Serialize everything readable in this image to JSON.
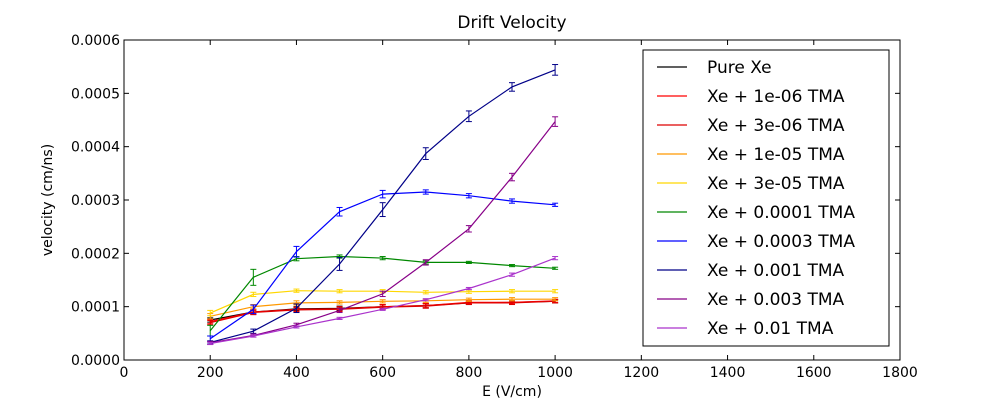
{
  "chart_data": {
    "type": "line",
    "title": "Drift Velocity",
    "xlabel": "E (V/cm)",
    "ylabel": "velocity (cm/ns)",
    "xlim": [
      0,
      1800
    ],
    "ylim": [
      0,
      0.0006
    ],
    "xticks": [
      0,
      200,
      400,
      600,
      800,
      1000,
      1200,
      1400,
      1600,
      1800
    ],
    "xtick_labels": [
      "0",
      "200",
      "400",
      "600",
      "800",
      "1000",
      "1200",
      "1400",
      "1600",
      "1800"
    ],
    "yticks": [
      0,
      0.0001,
      0.0002,
      0.0003,
      0.0004,
      0.0005,
      0.0006
    ],
    "ytick_labels": [
      "0.0000",
      "0.0001",
      "0.0002",
      "0.0003",
      "0.0004",
      "0.0005",
      "0.0006"
    ],
    "grid": false,
    "legend_position": "top-right",
    "x": [
      200,
      300,
      400,
      500,
      600,
      700,
      800,
      900,
      1000
    ],
    "series": [
      {
        "name": "Pure Xe",
        "color": "#000000",
        "values": [
          7.5e-05,
          9e-05,
          9.6e-05,
          9.7e-05,
          0.0001,
          0.000102,
          0.000107,
          0.000108,
          0.00011
        ],
        "errors": [
          4e-06,
          4e-06,
          4e-06,
          4e-06,
          4e-06,
          4e-06,
          3e-06,
          3e-06,
          3e-06
        ]
      },
      {
        "name": "Xe + 1e-06 TMA",
        "color": "#ff0000",
        "values": [
          7.2e-05,
          9e-05,
          9.5e-05,
          9.6e-05,
          0.0001,
          0.000102,
          0.000108,
          0.000108,
          0.000111
        ],
        "errors": [
          4e-06,
          4e-06,
          4e-06,
          4e-06,
          4e-06,
          4e-06,
          3e-06,
          3e-06,
          3e-06
        ]
      },
      {
        "name": "Xe + 3e-06 TMA",
        "color": "#dd0000",
        "values": [
          7e-05,
          8.9e-05,
          9.4e-05,
          9.5e-05,
          9.9e-05,
          0.000101,
          0.000107,
          0.000107,
          0.00011
        ],
        "errors": [
          4e-06,
          4e-06,
          4e-06,
          4e-06,
          4e-06,
          4e-06,
          3e-06,
          3e-06,
          3e-06
        ]
      },
      {
        "name": "Xe + 1e-05 TMA",
        "color": "#ff9900",
        "values": [
          8.2e-05,
          0.0001,
          0.000107,
          0.000108,
          0.00011,
          0.000111,
          0.000113,
          0.000114,
          0.000114
        ],
        "errors": [
          5e-06,
          4e-06,
          4e-06,
          3e-06,
          3e-06,
          3e-06,
          3e-06,
          3e-06,
          3e-06
        ]
      },
      {
        "name": "Xe + 3e-05 TMA",
        "color": "#ffd700",
        "values": [
          8.8e-05,
          0.000123,
          0.00013,
          0.000129,
          0.000129,
          0.000127,
          0.000128,
          0.000129,
          0.000129
        ],
        "errors": [
          5e-06,
          4e-06,
          3e-06,
          3e-06,
          3e-06,
          3e-06,
          3e-06,
          3e-06,
          3e-06
        ]
      },
      {
        "name": "Xe + 0.0001 TMA",
        "color": "#008800",
        "values": [
          5.5e-05,
          0.000155,
          0.00019,
          0.000194,
          0.000191,
          0.000183,
          0.000183,
          0.000177,
          0.000172
        ],
        "errors": [
          1e-05,
          1.5e-05,
          4e-06,
          3e-06,
          3e-06,
          3e-06,
          2e-06,
          2e-06,
          2e-06
        ]
      },
      {
        "name": "Xe + 0.0003 TMA",
        "color": "#0000ff",
        "values": [
          4e-05,
          9.5e-05,
          0.000203,
          0.000278,
          0.000311,
          0.000315,
          0.000308,
          0.000298,
          0.000291
        ],
        "errors": [
          5e-06,
          8e-06,
          1e-05,
          8e-06,
          7e-06,
          4e-06,
          4e-06,
          4e-06,
          3e-06
        ]
      },
      {
        "name": "Xe + 0.001 TMA",
        "color": "#000088",
        "values": [
          3.3e-05,
          5.4e-05,
          9.7e-05,
          0.00018,
          0.000282,
          0.000387,
          0.000457,
          0.000512,
          0.000544
        ],
        "errors": [
          3e-06,
          4e-06,
          8e-06,
          1.2e-05,
          1.3e-05,
          1.1e-05,
          1e-05,
          8e-06,
          1e-05
        ]
      },
      {
        "name": "Xe + 0.003 TMA",
        "color": "#880088",
        "values": [
          3.2e-05,
          4.6e-05,
          6.6e-05,
          9.3e-05,
          0.000124,
          0.000183,
          0.000246,
          0.000343,
          0.000447
        ],
        "errors": [
          3e-06,
          3e-06,
          3e-06,
          4e-06,
          5e-06,
          5e-06,
          6e-06,
          7e-06,
          9e-06
        ]
      },
      {
        "name": "Xe + 0.01 TMA",
        "color": "#aa33cc",
        "values": [
          3.1e-05,
          4.5e-05,
          6.2e-05,
          7.8e-05,
          9.5e-05,
          0.000113,
          0.000134,
          0.00016,
          0.000191
        ],
        "errors": [
          2e-06,
          2e-06,
          2e-06,
          2e-06,
          2e-06,
          2e-06,
          2e-06,
          3e-06,
          3e-06
        ]
      }
    ]
  }
}
